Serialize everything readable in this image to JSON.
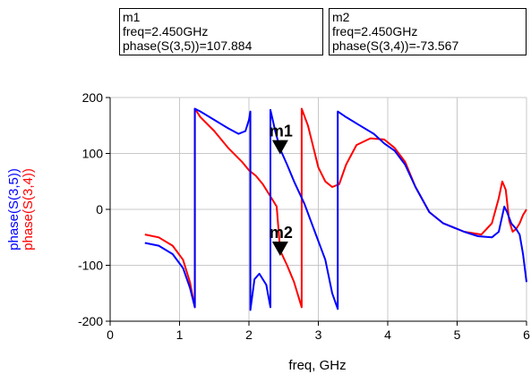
{
  "markers": [
    {
      "name": "m1",
      "freq_text": "freq=2.450GHz",
      "value_text": "phase(S(3,5))=107.884",
      "freq": 2.45,
      "value": 107.884,
      "series": "phase(S(3,5))"
    },
    {
      "name": "m2",
      "freq_text": "freq=2.450GHz",
      "value_text": "phase(S(3,4))=-73.567",
      "freq": 2.45,
      "value": -73.567,
      "series": "phase(S(3,4))"
    }
  ],
  "chart_data": {
    "type": "line",
    "xlabel": "freq, GHz",
    "ylabels": [
      {
        "text": "phase(S(3,5))",
        "color": "#0000ff"
      },
      {
        "text": "phase(S(3,4))",
        "color": "#ff0000"
      }
    ],
    "xlim": [
      0,
      6
    ],
    "ylim": [
      -200,
      200
    ],
    "xticks": [
      0,
      1,
      2,
      3,
      4,
      5,
      6
    ],
    "yticks": [
      -200,
      -100,
      0,
      100,
      200
    ],
    "xtick_labels": [
      "0",
      "1",
      "2",
      "3",
      "4",
      "5",
      "6"
    ],
    "ytick_labels": [
      "-200",
      "-100",
      "0",
      "100",
      "200"
    ],
    "grid": true,
    "series": [
      {
        "name": "phase(S(3,4))",
        "color": "#ff0000",
        "points": [
          [
            0.5,
            -45
          ],
          [
            0.7,
            -50
          ],
          [
            0.9,
            -65
          ],
          [
            1.05,
            -90
          ],
          [
            1.15,
            -130
          ],
          [
            1.22,
            -175
          ],
          [
            1.22,
            180
          ],
          [
            1.3,
            165
          ],
          [
            1.5,
            140
          ],
          [
            1.7,
            110
          ],
          [
            1.9,
            85
          ],
          [
            2.0,
            70
          ],
          [
            2.1,
            60
          ],
          [
            2.2,
            45
          ],
          [
            2.3,
            25
          ],
          [
            2.4,
            5
          ],
          [
            2.45,
            -73.567
          ],
          [
            2.55,
            -100
          ],
          [
            2.65,
            -130
          ],
          [
            2.76,
            -175
          ],
          [
            2.76,
            180
          ],
          [
            2.85,
            150
          ],
          [
            3.0,
            75
          ],
          [
            3.1,
            50
          ],
          [
            3.2,
            40
          ],
          [
            3.3,
            45
          ],
          [
            3.4,
            80
          ],
          [
            3.55,
            115
          ],
          [
            3.75,
            127
          ],
          [
            3.95,
            125
          ],
          [
            4.1,
            110
          ],
          [
            4.25,
            85
          ],
          [
            4.4,
            40
          ],
          [
            4.6,
            -5
          ],
          [
            4.8,
            -25
          ],
          [
            5.1,
            -40
          ],
          [
            5.35,
            -45
          ],
          [
            5.5,
            -25
          ],
          [
            5.6,
            20
          ],
          [
            5.65,
            50
          ],
          [
            5.7,
            35
          ],
          [
            5.75,
            -20
          ],
          [
            5.8,
            -40
          ],
          [
            5.85,
            -35
          ],
          [
            5.9,
            -25
          ],
          [
            5.95,
            -10
          ],
          [
            6.0,
            0
          ]
        ]
      },
      {
        "name": "phase(S(3,5))",
        "color": "#0000ff",
        "points": [
          [
            0.5,
            -60
          ],
          [
            0.7,
            -65
          ],
          [
            0.9,
            -80
          ],
          [
            1.05,
            -105
          ],
          [
            1.15,
            -140
          ],
          [
            1.22,
            -175
          ],
          [
            1.22,
            180
          ],
          [
            1.3,
            175
          ],
          [
            1.5,
            160
          ],
          [
            1.7,
            145
          ],
          [
            1.85,
            135
          ],
          [
            1.95,
            140
          ],
          [
            2.0,
            160
          ],
          [
            2.02,
            175
          ],
          [
            2.02,
            -180
          ],
          [
            2.08,
            -125
          ],
          [
            2.15,
            -115
          ],
          [
            2.25,
            -135
          ],
          [
            2.31,
            -175
          ],
          [
            2.31,
            178
          ],
          [
            2.38,
            140
          ],
          [
            2.45,
            107.884
          ],
          [
            2.55,
            80
          ],
          [
            2.65,
            50
          ],
          [
            2.8,
            10
          ],
          [
            2.95,
            -40
          ],
          [
            3.1,
            -90
          ],
          [
            3.2,
            -150
          ],
          [
            3.28,
            -178
          ],
          [
            3.28,
            175
          ],
          [
            3.4,
            165
          ],
          [
            3.6,
            150
          ],
          [
            3.8,
            135
          ],
          [
            3.95,
            118
          ],
          [
            4.1,
            105
          ],
          [
            4.25,
            80
          ],
          [
            4.4,
            40
          ],
          [
            4.6,
            -5
          ],
          [
            4.8,
            -25
          ],
          [
            5.1,
            -40
          ],
          [
            5.3,
            -48
          ],
          [
            5.5,
            -50
          ],
          [
            5.6,
            -40
          ],
          [
            5.68,
            5
          ],
          [
            5.72,
            -5
          ],
          [
            5.78,
            -25
          ],
          [
            5.85,
            -35
          ],
          [
            5.9,
            -45
          ],
          [
            5.95,
            -80
          ],
          [
            6.0,
            -130
          ]
        ]
      }
    ],
    "annotations": [
      {
        "label": "m1",
        "x": 2.45,
        "y": 107.884
      },
      {
        "label": "m2",
        "x": 2.45,
        "y": -73.567
      }
    ]
  }
}
